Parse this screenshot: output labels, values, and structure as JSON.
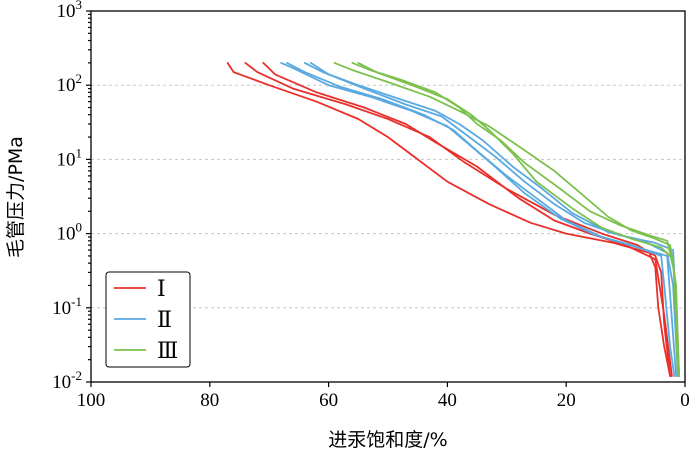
{
  "chart_data": {
    "type": "line",
    "xlabel": "进汞饱和度/%",
    "ylabel": "毛管压力/PMa",
    "x_reversed": true,
    "xlim": [
      100,
      0
    ],
    "ylim": [
      0.01,
      1000
    ],
    "y_scale": "log",
    "grid": "horizontal-dashed",
    "legend_placement": "bottom-left",
    "x_ticks": [
      "100",
      "80",
      "60",
      "40",
      "20",
      "0"
    ],
    "y_ticks": [
      {
        "base": "10",
        "exp": "-2"
      },
      {
        "base": "10",
        "exp": "-1"
      },
      {
        "base": "10",
        "exp": "0"
      },
      {
        "base": "10",
        "exp": "1"
      },
      {
        "base": "10",
        "exp": "2"
      },
      {
        "base": "10",
        "exp": "3"
      }
    ],
    "legend": [
      {
        "label": "Ⅰ",
        "color": "#e8302b"
      },
      {
        "label": "Ⅱ",
        "color": "#5aa9e0"
      },
      {
        "label": "Ⅲ",
        "color": "#7cc04e"
      }
    ],
    "series": [
      {
        "name": "Ⅰ",
        "color": "#e8302b",
        "points": [
          [
            77,
            200
          ],
          [
            76,
            150
          ],
          [
            70,
            100
          ],
          [
            62,
            60
          ],
          [
            55,
            35
          ],
          [
            50,
            20
          ],
          [
            45,
            10
          ],
          [
            40,
            5
          ],
          [
            33,
            2.5
          ],
          [
            26,
            1.4
          ],
          [
            20,
            1.0
          ],
          [
            12,
            0.75
          ],
          [
            6,
            0.55
          ],
          [
            5,
            0.35
          ],
          [
            4.5,
            0.1
          ],
          [
            3.5,
            0.03
          ],
          [
            2.5,
            0.012
          ]
        ]
      },
      {
        "name": "Ⅰ",
        "color": "#e8302b",
        "points": [
          [
            74,
            200
          ],
          [
            72,
            150
          ],
          [
            66,
            90
          ],
          [
            57,
            55
          ],
          [
            50,
            35
          ],
          [
            43,
            20
          ],
          [
            37,
            9
          ],
          [
            30,
            4
          ],
          [
            22,
            1.8
          ],
          [
            14,
            1.0
          ],
          [
            8,
            0.7
          ],
          [
            5,
            0.5
          ],
          [
            4,
            0.3
          ],
          [
            3.5,
            0.06
          ],
          [
            2.5,
            0.012
          ]
        ]
      },
      {
        "name": "Ⅰ",
        "color": "#e8302b",
        "points": [
          [
            71,
            200
          ],
          [
            69,
            140
          ],
          [
            62,
            80
          ],
          [
            54,
            50
          ],
          [
            47,
            30
          ],
          [
            42,
            17
          ],
          [
            35,
            8
          ],
          [
            28,
            3
          ],
          [
            22,
            1.5
          ],
          [
            16,
            1.0
          ],
          [
            10,
            0.7
          ],
          [
            5,
            0.45
          ],
          [
            3.5,
            0.08
          ],
          [
            2.2,
            0.012
          ]
        ]
      },
      {
        "name": "Ⅱ",
        "color": "#5aa9e0",
        "points": [
          [
            68,
            200
          ],
          [
            66,
            170
          ],
          [
            60,
            100
          ],
          [
            53,
            70
          ],
          [
            46,
            45
          ],
          [
            40,
            28
          ],
          [
            36,
            15
          ],
          [
            32,
            8
          ],
          [
            27,
            3.5
          ],
          [
            21,
            1.6
          ],
          [
            15,
            0.95
          ],
          [
            9,
            0.7
          ],
          [
            4,
            0.5
          ],
          [
            3.5,
            0.2
          ],
          [
            2.5,
            0.03
          ],
          [
            1.8,
            0.012
          ]
        ]
      },
      {
        "name": "Ⅱ",
        "color": "#5aa9e0",
        "points": [
          [
            67,
            200
          ],
          [
            64,
            150
          ],
          [
            58,
            95
          ],
          [
            51,
            65
          ],
          [
            44,
            40
          ],
          [
            39,
            25
          ],
          [
            35,
            13
          ],
          [
            30,
            6
          ],
          [
            25,
            3
          ],
          [
            20,
            1.5
          ],
          [
            14,
            0.9
          ],
          [
            8,
            0.65
          ],
          [
            3,
            0.5
          ],
          [
            2.5,
            0.15
          ],
          [
            1.5,
            0.012
          ]
        ]
      },
      {
        "name": "Ⅱ",
        "color": "#5aa9e0",
        "points": [
          [
            64,
            200
          ],
          [
            61,
            150
          ],
          [
            55,
            100
          ],
          [
            48,
            65
          ],
          [
            42,
            45
          ],
          [
            38,
            30
          ],
          [
            34,
            18
          ],
          [
            29,
            8
          ],
          [
            24,
            4
          ],
          [
            19,
            1.9
          ],
          [
            13,
            1.05
          ],
          [
            7,
            0.8
          ],
          [
            3,
            0.55
          ],
          [
            2,
            0.2
          ],
          [
            1.2,
            0.012
          ]
        ]
      },
      {
        "name": "Ⅱ",
        "color": "#5aa9e0",
        "points": [
          [
            63,
            200
          ],
          [
            60,
            140
          ],
          [
            54,
            90
          ],
          [
            47,
            55
          ],
          [
            41,
            38
          ],
          [
            37,
            22
          ],
          [
            32,
            11
          ],
          [
            27,
            5
          ],
          [
            22,
            2.5
          ],
          [
            17,
            1.4
          ],
          [
            11,
            0.95
          ],
          [
            5,
            0.75
          ],
          [
            2,
            0.6
          ],
          [
            1.5,
            0.1
          ],
          [
            1,
            0.012
          ]
        ]
      },
      {
        "name": "Ⅲ",
        "color": "#7cc04e",
        "points": [
          [
            59,
            200
          ],
          [
            56,
            160
          ],
          [
            50,
            110
          ],
          [
            43,
            70
          ],
          [
            38,
            45
          ],
          [
            33,
            28
          ],
          [
            28,
            15
          ],
          [
            22,
            7
          ],
          [
            17,
            3.2
          ],
          [
            13,
            1.7
          ],
          [
            9,
            1.1
          ],
          [
            5,
            0.85
          ],
          [
            2.5,
            0.7
          ],
          [
            1.5,
            0.2
          ],
          [
            1,
            0.012
          ]
        ]
      },
      {
        "name": "Ⅲ",
        "color": "#7cc04e",
        "points": [
          [
            55,
            200
          ],
          [
            52,
            150
          ],
          [
            46,
            100
          ],
          [
            40,
            65
          ],
          [
            36,
            40
          ],
          [
            33,
            25
          ],
          [
            29,
            12
          ],
          [
            25,
            5
          ],
          [
            19,
            2.2
          ],
          [
            14,
            1.2
          ],
          [
            9,
            0.85
          ],
          [
            4,
            0.65
          ],
          [
            2,
            0.45
          ],
          [
            1,
            0.012
          ]
        ]
      },
      {
        "name": "Ⅲ",
        "color": "#7cc04e",
        "points": [
          [
            56,
            200
          ],
          [
            53,
            160
          ],
          [
            48,
            120
          ],
          [
            42,
            80
          ],
          [
            38,
            50
          ],
          [
            35,
            30
          ],
          [
            31,
            18
          ],
          [
            27,
            9
          ],
          [
            21,
            4
          ],
          [
            16,
            2
          ],
          [
            11,
            1.3
          ],
          [
            6,
            0.95
          ],
          [
            3,
            0.8
          ],
          [
            1.8,
            0.3
          ],
          [
            1.2,
            0.012
          ]
        ]
      }
    ]
  }
}
